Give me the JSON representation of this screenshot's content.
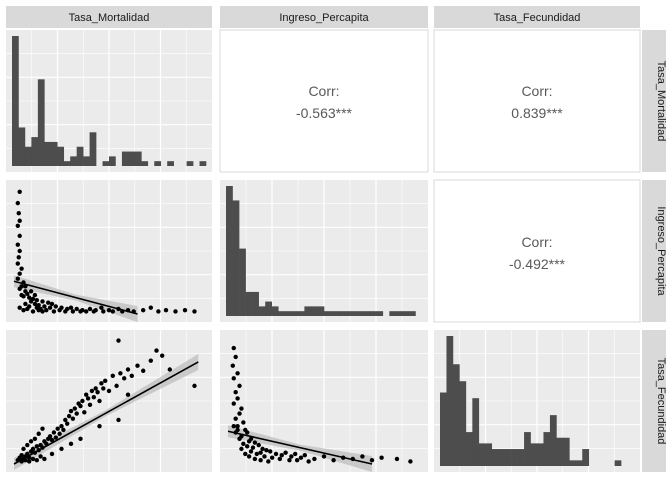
{
  "chart_data": {
    "type": "scatter-matrix",
    "variables": [
      "Tasa_Mortalidad",
      "Ingreso_Percapita",
      "Tasa_Fecundidad"
    ],
    "correlations": [
      {
        "row": 0,
        "col": 1,
        "label": "Corr:",
        "value": "-0.563***"
      },
      {
        "row": 0,
        "col": 2,
        "label": "Corr:",
        "value": "0.839***"
      },
      {
        "row": 1,
        "col": 2,
        "label": "Corr:",
        "value": "-0.492***"
      }
    ],
    "histograms": [
      {
        "variable": "Tasa_Mortalidad",
        "counts": [
          27,
          8,
          4,
          6,
          18,
          5,
          5,
          4,
          1,
          2,
          4,
          2,
          7,
          0,
          1,
          2,
          0,
          3,
          3,
          3,
          1,
          0,
          1,
          0,
          1,
          0,
          0,
          1,
          0,
          1
        ]
      },
      {
        "variable": "Ingreso_Percapita",
        "counts": [
          27,
          24,
          14,
          5,
          5,
          2,
          3,
          2,
          1,
          1,
          1,
          1,
          2,
          2,
          2,
          1,
          1,
          1,
          1,
          1,
          1,
          1,
          1,
          1,
          0,
          1,
          1,
          1,
          1,
          0
        ]
      },
      {
        "variable": "Tasa_Fecundidad",
        "counts": [
          13,
          23,
          18,
          15,
          6,
          12,
          4,
          4,
          3,
          3,
          3,
          3,
          3,
          6,
          4,
          4,
          6,
          9,
          5,
          5,
          1,
          1,
          3,
          0,
          0,
          0,
          0,
          1,
          0,
          0
        ]
      }
    ],
    "scatter": [
      {
        "x": "Tasa_Mortalidad",
        "y": "Ingreso_Percapita",
        "points": [
          [
            0.03,
            0.97
          ],
          [
            0.02,
            0.88
          ],
          [
            0.025,
            0.8
          ],
          [
            0.03,
            0.74
          ],
          [
            0.02,
            0.7
          ],
          [
            0.03,
            0.62
          ],
          [
            0.02,
            0.55
          ],
          [
            0.03,
            0.5
          ],
          [
            0.025,
            0.45
          ],
          [
            0.02,
            0.4
          ],
          [
            0.04,
            0.36
          ],
          [
            0.03,
            0.32
          ],
          [
            0.02,
            0.28
          ],
          [
            0.05,
            0.25
          ],
          [
            0.04,
            0.22
          ],
          [
            0.03,
            0.2
          ],
          [
            0.06,
            0.18
          ],
          [
            0.07,
            0.16
          ],
          [
            0.05,
            0.14
          ],
          [
            0.08,
            0.13
          ],
          [
            0.1,
            0.12
          ],
          [
            0.12,
            0.11
          ],
          [
            0.15,
            0.1
          ],
          [
            0.18,
            0.09
          ],
          [
            0.2,
            0.08
          ],
          [
            0.09,
            0.1
          ],
          [
            0.11,
            0.08
          ],
          [
            0.13,
            0.07
          ],
          [
            0.16,
            0.06
          ],
          [
            0.19,
            0.05
          ],
          [
            0.22,
            0.06
          ],
          [
            0.25,
            0.05
          ],
          [
            0.28,
            0.04
          ],
          [
            0.3,
            0.05
          ],
          [
            0.33,
            0.04
          ],
          [
            0.36,
            0.03
          ],
          [
            0.4,
            0.04
          ],
          [
            0.43,
            0.03
          ],
          [
            0.46,
            0.05
          ],
          [
            0.5,
            0.03
          ],
          [
            0.55,
            0.04
          ],
          [
            0.6,
            0.03
          ],
          [
            0.63,
            0.02
          ],
          [
            0.68,
            0.03
          ],
          [
            0.72,
            0.05
          ],
          [
            0.76,
            0.02
          ],
          [
            0.8,
            0.03
          ],
          [
            0.85,
            0.02
          ],
          [
            0.9,
            0.03
          ],
          [
            0.95,
            0.02
          ],
          [
            0.06,
            0.08
          ],
          [
            0.08,
            0.06
          ],
          [
            0.12,
            0.05
          ],
          [
            0.14,
            0.04
          ],
          [
            0.17,
            0.03
          ],
          [
            0.21,
            0.02
          ],
          [
            0.24,
            0.03
          ],
          [
            0.27,
            0.02
          ],
          [
            0.31,
            0.02
          ],
          [
            0.35,
            0.02
          ],
          [
            0.38,
            0.02
          ],
          [
            0.42,
            0.02
          ],
          [
            0.47,
            0.02
          ],
          [
            0.52,
            0.02
          ],
          [
            0.57,
            0.02
          ],
          [
            0.04,
            0.15
          ],
          [
            0.06,
            0.22
          ],
          [
            0.09,
            0.18
          ],
          [
            0.11,
            0.15
          ],
          [
            0.03,
            0.05
          ],
          [
            0.05,
            0.03
          ],
          [
            0.07,
            0.04
          ],
          [
            0.1,
            0.02
          ],
          [
            0.13,
            0.03
          ],
          [
            0.15,
            0.02
          ]
        ],
        "fit": {
          "x": [
            0.0,
            0.65
          ],
          "y": [
            0.26,
            0.0
          ]
        }
      },
      {
        "x": "Tasa_Mortalidad",
        "y": "Tasa_Fecundidad",
        "points": [
          [
            0.03,
            0.05
          ],
          [
            0.04,
            0.07
          ],
          [
            0.05,
            0.04
          ],
          [
            0.06,
            0.06
          ],
          [
            0.07,
            0.08
          ],
          [
            0.08,
            0.05
          ],
          [
            0.09,
            0.1
          ],
          [
            0.1,
            0.12
          ],
          [
            0.11,
            0.09
          ],
          [
            0.12,
            0.14
          ],
          [
            0.13,
            0.11
          ],
          [
            0.14,
            0.15
          ],
          [
            0.15,
            0.13
          ],
          [
            0.16,
            0.18
          ],
          [
            0.17,
            0.16
          ],
          [
            0.18,
            0.2
          ],
          [
            0.19,
            0.22
          ],
          [
            0.2,
            0.19
          ],
          [
            0.21,
            0.25
          ],
          [
            0.22,
            0.21
          ],
          [
            0.23,
            0.28
          ],
          [
            0.24,
            0.24
          ],
          [
            0.25,
            0.3
          ],
          [
            0.26,
            0.27
          ],
          [
            0.27,
            0.35
          ],
          [
            0.28,
            0.32
          ],
          [
            0.29,
            0.38
          ],
          [
            0.3,
            0.42
          ],
          [
            0.31,
            0.36
          ],
          [
            0.32,
            0.44
          ],
          [
            0.33,
            0.4
          ],
          [
            0.34,
            0.48
          ],
          [
            0.35,
            0.46
          ],
          [
            0.36,
            0.5
          ],
          [
            0.37,
            0.41
          ],
          [
            0.38,
            0.55
          ],
          [
            0.39,
            0.52
          ],
          [
            0.4,
            0.47
          ],
          [
            0.41,
            0.58
          ],
          [
            0.42,
            0.53
          ],
          [
            0.43,
            0.6
          ],
          [
            0.44,
            0.57
          ],
          [
            0.45,
            0.5
          ],
          [
            0.46,
            0.64
          ],
          [
            0.47,
            0.6
          ],
          [
            0.48,
            0.66
          ],
          [
            0.5,
            0.58
          ],
          [
            0.52,
            0.7
          ],
          [
            0.54,
            0.62
          ],
          [
            0.56,
            0.72
          ],
          [
            0.58,
            0.68
          ],
          [
            0.6,
            0.75
          ],
          [
            0.62,
            0.7
          ],
          [
            0.65,
            0.78
          ],
          [
            0.68,
            0.74
          ],
          [
            0.72,
            0.82
          ],
          [
            0.75,
            0.9
          ],
          [
            0.78,
            0.86
          ],
          [
            0.82,
            0.75
          ],
          [
            0.95,
            0.62
          ],
          [
            0.55,
            0.98
          ],
          [
            0.02,
            0.03
          ],
          [
            0.04,
            0.02
          ],
          [
            0.06,
            0.03
          ],
          [
            0.08,
            0.02
          ],
          [
            0.1,
            0.04
          ],
          [
            0.12,
            0.03
          ],
          [
            0.14,
            0.06
          ],
          [
            0.16,
            0.04
          ],
          [
            0.2,
            0.08
          ],
          [
            0.25,
            0.12
          ],
          [
            0.3,
            0.16
          ],
          [
            0.35,
            0.2
          ],
          [
            0.45,
            0.3
          ],
          [
            0.55,
            0.35
          ],
          [
            0.6,
            0.55
          ],
          [
            0.05,
            0.12
          ],
          [
            0.07,
            0.15
          ],
          [
            0.09,
            0.18
          ],
          [
            0.11,
            0.2
          ],
          [
            0.13,
            0.24
          ],
          [
            0.15,
            0.28
          ]
        ],
        "fit": {
          "x": [
            0.0,
            0.97
          ],
          "y": [
            0.0,
            0.81
          ]
        }
      },
      {
        "x": "Ingreso_Percapita",
        "y": "Tasa_Fecundidad",
        "points": [
          [
            0.03,
            0.92
          ],
          [
            0.04,
            0.85
          ],
          [
            0.025,
            0.78
          ],
          [
            0.05,
            0.72
          ],
          [
            0.03,
            0.68
          ],
          [
            0.06,
            0.62
          ],
          [
            0.04,
            0.57
          ],
          [
            0.05,
            0.52
          ],
          [
            0.03,
            0.48
          ],
          [
            0.07,
            0.44
          ],
          [
            0.06,
            0.4
          ],
          [
            0.04,
            0.36
          ],
          [
            0.08,
            0.33
          ],
          [
            0.05,
            0.3
          ],
          [
            0.09,
            0.27
          ],
          [
            0.1,
            0.25
          ],
          [
            0.07,
            0.22
          ],
          [
            0.12,
            0.2
          ],
          [
            0.11,
            0.18
          ],
          [
            0.14,
            0.17
          ],
          [
            0.16,
            0.15
          ],
          [
            0.13,
            0.13
          ],
          [
            0.18,
            0.12
          ],
          [
            0.2,
            0.11
          ],
          [
            0.22,
            0.1
          ],
          [
            0.17,
            0.09
          ],
          [
            0.25,
            0.08
          ],
          [
            0.28,
            0.07
          ],
          [
            0.3,
            0.09
          ],
          [
            0.33,
            0.06
          ],
          [
            0.35,
            0.08
          ],
          [
            0.38,
            0.05
          ],
          [
            0.4,
            0.07
          ],
          [
            0.45,
            0.04
          ],
          [
            0.5,
            0.06
          ],
          [
            0.55,
            0.03
          ],
          [
            0.6,
            0.05
          ],
          [
            0.65,
            0.04
          ],
          [
            0.7,
            0.06
          ],
          [
            0.75,
            0.03
          ],
          [
            0.8,
            0.05
          ],
          [
            0.88,
            0.04
          ],
          [
            0.95,
            0.02
          ],
          [
            0.04,
            0.25
          ],
          [
            0.06,
            0.2
          ],
          [
            0.08,
            0.16
          ],
          [
            0.1,
            0.14
          ],
          [
            0.12,
            0.1
          ],
          [
            0.15,
            0.08
          ],
          [
            0.19,
            0.06
          ],
          [
            0.23,
            0.05
          ],
          [
            0.27,
            0.04
          ],
          [
            0.32,
            0.03
          ],
          [
            0.36,
            0.03
          ],
          [
            0.42,
            0.02
          ],
          [
            0.03,
            0.3
          ],
          [
            0.05,
            0.27
          ],
          [
            0.07,
            0.12
          ],
          [
            0.09,
            0.08
          ],
          [
            0.11,
            0.06
          ],
          [
            0.14,
            0.04
          ],
          [
            0.17,
            0.03
          ],
          [
            0.21,
            0.02
          ]
        ],
        "fit": {
          "x": [
            0.0,
            0.75
          ],
          "y": [
            0.26,
            0.0
          ]
        }
      }
    ],
    "grid": true,
    "panel_background": "#ebebeb",
    "strip_background": "#d9d9d9",
    "bar_color": "#4d4d4d",
    "point_color": "#000000",
    "fit_line_color": "#000000",
    "ci_band_color": "#bdbdbd"
  }
}
